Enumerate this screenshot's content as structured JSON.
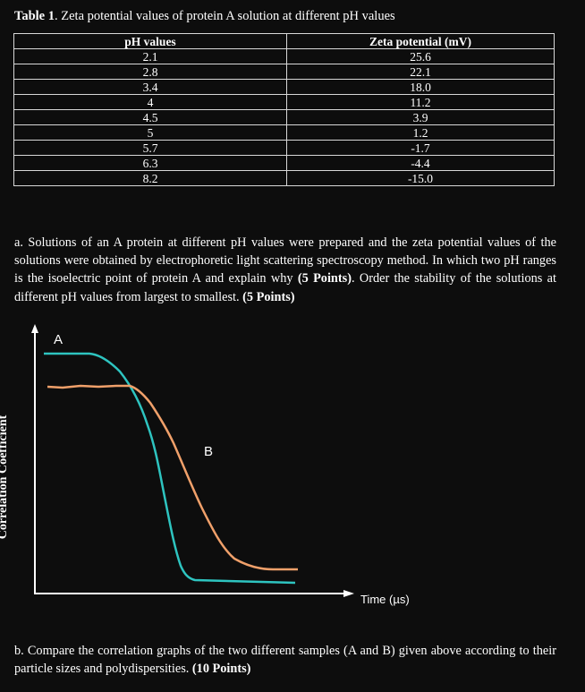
{
  "table": {
    "title_label": "Table 1",
    "title_text": ". Zeta potential values of protein A solution at different pH values",
    "headers": [
      "pH values",
      "Zeta potential (mV)"
    ],
    "rows": [
      [
        "2.1",
        "25.6"
      ],
      [
        "2.8",
        "22.1"
      ],
      [
        "3.4",
        "18.0"
      ],
      [
        "4",
        "11.2"
      ],
      [
        "4.5",
        "3.9"
      ],
      [
        "5",
        "1.2"
      ],
      [
        "5.7",
        "-1.7"
      ],
      [
        "6.3",
        "-4.4"
      ],
      [
        "8.2",
        "-15.0"
      ]
    ]
  },
  "question_a": {
    "text": "a. Solutions of an A protein at different pH values were prepared and the zeta potential values of the solutions were obtained by electrophoretic light scattering spectroscopy method. In which two pH ranges is the isoelectric point of protein A and explain why ",
    "points1": "(5 Points)",
    "mid": ". Order the stability of the solutions at different pH values from largest to smallest. ",
    "points2": "(5 Points)"
  },
  "graph": {
    "ylabel": "Correlation Coefficient",
    "xlabel": "Time (µs)",
    "curve_a_label": "A",
    "curve_b_label": "B",
    "curve_a_color": "#2ec4c0",
    "curve_b_color": "#f0a06a"
  },
  "question_b": {
    "text": "b. Compare the correlation graphs of the two different samples (A and B) given above according to their particle sizes and polydispersities. ",
    "points": "(10 Points)"
  }
}
